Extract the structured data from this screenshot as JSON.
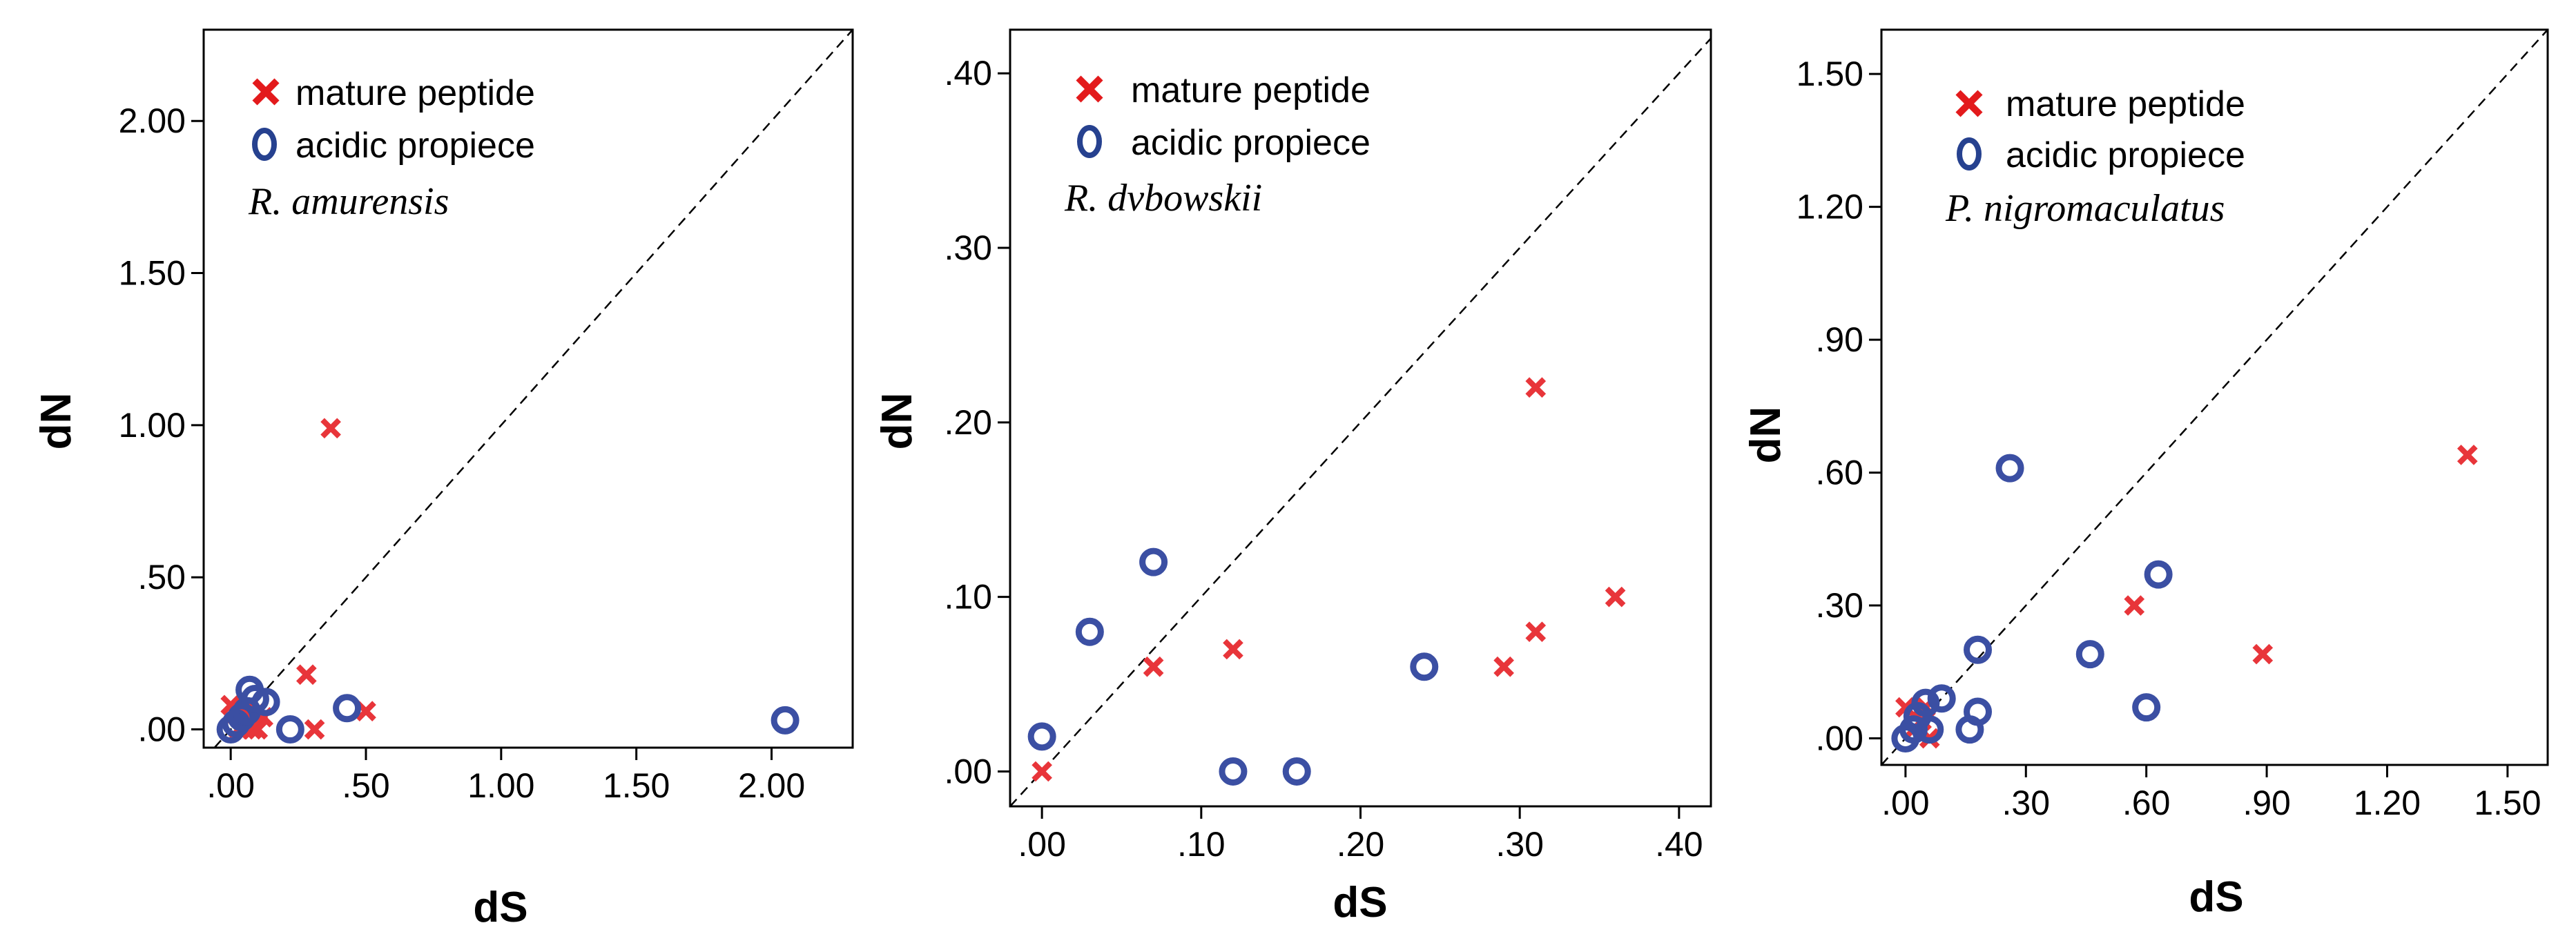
{
  "chart_data": [
    {
      "type": "scatter",
      "title": "",
      "xlabel": "dS",
      "ylabel": "dN",
      "species": "R. amurensis",
      "xlim": [
        -0.1,
        2.3
      ],
      "ylim": [
        -0.06,
        2.3
      ],
      "xticks": [
        ".00",
        ".50",
        "1.00",
        "1.50",
        "2.00"
      ],
      "xtick_values": [
        0,
        0.5,
        1.0,
        1.5,
        2.0
      ],
      "yticks": [
        ".00",
        ".50",
        "1.00",
        "1.50",
        "2.00"
      ],
      "ytick_values": [
        0,
        0.5,
        1.0,
        1.5,
        2.0
      ],
      "reference_line": "y = x",
      "legend": [
        "mature peptide",
        "acidic propiece"
      ],
      "series": [
        {
          "name": "mature peptide",
          "marker": "x",
          "color": "#e8353a",
          "points": [
            [
              0.0,
              0.08
            ],
            [
              0.02,
              0.05
            ],
            [
              0.04,
              0.07
            ],
            [
              0.05,
              0.02
            ],
            [
              0.06,
              0.05
            ],
            [
              0.07,
              0.08
            ],
            [
              0.08,
              0.0
            ],
            [
              0.1,
              0.06
            ],
            [
              0.12,
              0.04
            ],
            [
              0.28,
              0.18
            ],
            [
              0.31,
              0.0
            ],
            [
              0.37,
              0.99
            ],
            [
              0.5,
              0.06
            ],
            [
              0.1,
              0.0
            ],
            [
              0.03,
              0.0
            ]
          ]
        },
        {
          "name": "acidic propiece",
          "marker": "o",
          "color": "#3b4fa3",
          "points": [
            [
              0.0,
              0.0
            ],
            [
              0.02,
              0.02
            ],
            [
              0.04,
              0.04
            ],
            [
              0.06,
              0.06
            ],
            [
              0.07,
              0.13
            ],
            [
              0.09,
              0.1
            ],
            [
              0.13,
              0.09
            ],
            [
              0.22,
              0.0
            ],
            [
              0.43,
              0.07
            ],
            [
              2.05,
              0.03
            ]
          ]
        }
      ]
    },
    {
      "type": "scatter",
      "title": "",
      "xlabel": "dS",
      "ylabel": "dN",
      "species": "R. dvbowskii",
      "xlim": [
        -0.02,
        0.42
      ],
      "ylim": [
        -0.02,
        0.425
      ],
      "xticks": [
        ".00",
        ".10",
        ".20",
        ".30",
        ".40"
      ],
      "xtick_values": [
        0,
        0.1,
        0.2,
        0.3,
        0.4
      ],
      "yticks": [
        ".00",
        ".10",
        ".20",
        ".30",
        ".40"
      ],
      "ytick_values": [
        0,
        0.1,
        0.2,
        0.3,
        0.4
      ],
      "reference_line": "y = x",
      "legend": [
        "mature peptide",
        "acidic propiece"
      ],
      "series": [
        {
          "name": "mature peptide",
          "marker": "x",
          "color": "#e8353a",
          "points": [
            [
              0.0,
              0.0
            ],
            [
              0.07,
              0.06
            ],
            [
              0.12,
              0.07
            ],
            [
              0.29,
              0.06
            ],
            [
              0.31,
              0.22
            ],
            [
              0.31,
              0.08
            ],
            [
              0.36,
              0.1
            ]
          ]
        },
        {
          "name": "acidic propiece",
          "marker": "o",
          "color": "#3b4fa3",
          "points": [
            [
              0.0,
              0.02
            ],
            [
              0.03,
              0.08
            ],
            [
              0.07,
              0.12
            ],
            [
              0.12,
              0.0
            ],
            [
              0.16,
              0.0
            ],
            [
              0.24,
              0.06
            ]
          ]
        }
      ]
    },
    {
      "type": "scatter",
      "title": "",
      "xlabel": "dS",
      "ylabel": "dN",
      "species": "P. nigromaculatus",
      "xlim": [
        -0.06,
        1.6
      ],
      "ylim": [
        -0.06,
        1.6
      ],
      "xticks": [
        ".00",
        ".30",
        ".60",
        ".90",
        "1.20",
        "1.50"
      ],
      "xtick_values": [
        0,
        0.3,
        0.6,
        0.9,
        1.2,
        1.5
      ],
      "yticks": [
        ".00",
        ".30",
        ".60",
        ".90",
        "1.20",
        "1.50"
      ],
      "ytick_values": [
        0,
        0.3,
        0.6,
        0.9,
        1.2,
        1.5
      ],
      "reference_line": "y = x",
      "legend": [
        "mature peptide",
        "acidic propiece"
      ],
      "series": [
        {
          "name": "mature peptide",
          "marker": "x",
          "color": "#e8353a",
          "points": [
            [
              0.0,
              0.07
            ],
            [
              0.02,
              0.02
            ],
            [
              0.04,
              0.04
            ],
            [
              0.05,
              0.07
            ],
            [
              0.06,
              0.0
            ],
            [
              0.57,
              0.3
            ],
            [
              0.89,
              0.19
            ],
            [
              1.4,
              0.64
            ]
          ]
        },
        {
          "name": "acidic propiece",
          "marker": "o",
          "color": "#3b4fa3",
          "points": [
            [
              0.0,
              0.0
            ],
            [
              0.02,
              0.02
            ],
            [
              0.03,
              0.05
            ],
            [
              0.05,
              0.08
            ],
            [
              0.06,
              0.02
            ],
            [
              0.09,
              0.09
            ],
            [
              0.16,
              0.02
            ],
            [
              0.18,
              0.06
            ],
            [
              0.18,
              0.2
            ],
            [
              0.26,
              0.61
            ],
            [
              0.46,
              0.19
            ],
            [
              0.6,
              0.07
            ],
            [
              0.63,
              0.37
            ]
          ]
        }
      ]
    }
  ]
}
